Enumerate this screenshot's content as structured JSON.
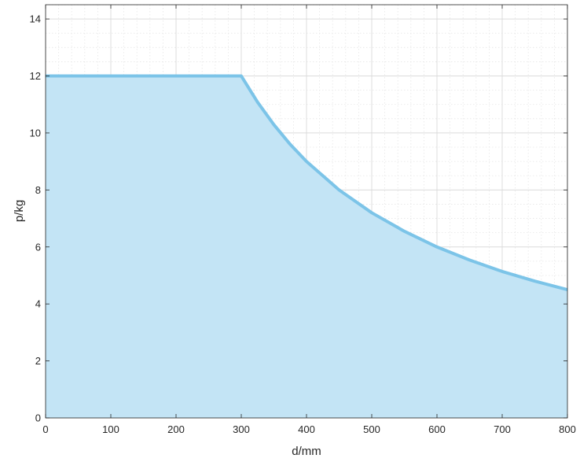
{
  "chart_data": {
    "type": "area",
    "title": "",
    "xlabel": "d/mm",
    "ylabel": "p/kg",
    "xlim": [
      0,
      800
    ],
    "ylim": [
      0,
      14.5
    ],
    "x_ticks": [
      0,
      100,
      200,
      300,
      400,
      500,
      600,
      700,
      800
    ],
    "y_ticks": [
      0,
      2,
      4,
      6,
      8,
      10,
      12,
      14
    ],
    "grid": true,
    "minor_grid": true,
    "fill_color": "#c3e4f5",
    "line_color": "#7cc4e8",
    "series": [
      {
        "x": [
          0,
          300,
          325,
          350,
          375,
          400,
          450,
          500,
          550,
          600,
          650,
          700,
          750,
          800
        ],
        "y": [
          12,
          12,
          11.08,
          10.29,
          9.6,
          9.0,
          8.0,
          7.2,
          6.55,
          6.0,
          5.54,
          5.14,
          4.8,
          4.5
        ]
      }
    ]
  }
}
